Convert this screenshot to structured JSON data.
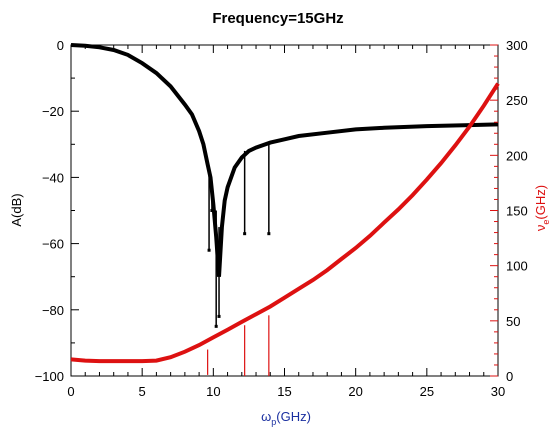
{
  "chart_data": {
    "type": "line",
    "title": "Frequency=15GHz",
    "xlabel": {
      "base": "ω",
      "sub": "p",
      "rest": "(GHz)"
    },
    "ylabel_left": "A(dB)",
    "ylabel_right": {
      "base": "ν",
      "sub": "e",
      "rest": "(GHz)"
    },
    "xlim": [
      0,
      30
    ],
    "ylim_left": [
      -100,
      0
    ],
    "ylim_right": [
      0,
      300
    ],
    "x_ticks": [
      0,
      5,
      10,
      15,
      20,
      25,
      30
    ],
    "y_left_ticks": [
      0,
      -20,
      -40,
      -60,
      -80,
      -100
    ],
    "y_right_ticks": [
      0,
      50,
      100,
      150,
      200,
      250,
      300
    ],
    "series": [
      {
        "name": "",
        "axis": "left",
        "color": "#000000",
        "x": [
          0,
          1,
          2,
          3,
          4,
          5,
          6,
          7,
          8,
          8.5,
          9,
          9.3,
          9.6,
          9.8,
          10.0,
          10.2,
          10.4,
          10.6,
          10.8,
          11,
          11.5,
          12,
          12.5,
          13,
          14,
          15,
          16,
          18,
          20,
          22,
          25,
          28,
          30
        ],
        "y": [
          0,
          -0.2,
          -0.7,
          -1.5,
          -3,
          -5.5,
          -8.5,
          -12.5,
          -18,
          -21,
          -26,
          -30,
          -36,
          -40,
          -48,
          -58,
          -70,
          -55,
          -47,
          -43,
          -37,
          -34,
          -32,
          -31,
          -29.5,
          -28.5,
          -27.5,
          -26.5,
          -25.5,
          -25,
          -24.5,
          -24.2,
          -24
        ]
      },
      {
        "name": "",
        "axis": "right",
        "color": "#dd1111",
        "x": [
          0,
          1,
          2,
          3,
          4,
          5,
          6,
          7,
          8,
          9,
          10,
          11,
          12,
          13,
          14,
          15,
          16,
          17,
          18,
          19,
          20,
          21,
          22,
          23,
          24,
          25,
          26,
          27,
          28,
          29,
          30
        ],
        "y": [
          15,
          14,
          13.5,
          13.5,
          13.5,
          13.5,
          14,
          17,
          22,
          28,
          35,
          42,
          49,
          56,
          63,
          71,
          79,
          87,
          96,
          106,
          116,
          127,
          139,
          151,
          164,
          178,
          193,
          209,
          226,
          245,
          265
        ]
      }
    ],
    "spikes_left": [
      {
        "x": 9.7,
        "top": -38,
        "bottom": -62
      },
      {
        "x": 9.9,
        "top": -42,
        "bottom": -50
      },
      {
        "x": 10.2,
        "top": -50,
        "bottom": -85
      },
      {
        "x": 10.4,
        "top": -55,
        "bottom": -82
      },
      {
        "x": 12.2,
        "top": -32,
        "bottom": -57
      },
      {
        "x": 13.9,
        "top": -30,
        "bottom": -57
      }
    ],
    "spikes_right": [
      {
        "x": 9.6,
        "top": 24,
        "bottom": 1
      },
      {
        "x": 12.2,
        "top": 46,
        "bottom": 0
      },
      {
        "x": 13.9,
        "top": 55,
        "bottom": 0
      }
    ]
  }
}
